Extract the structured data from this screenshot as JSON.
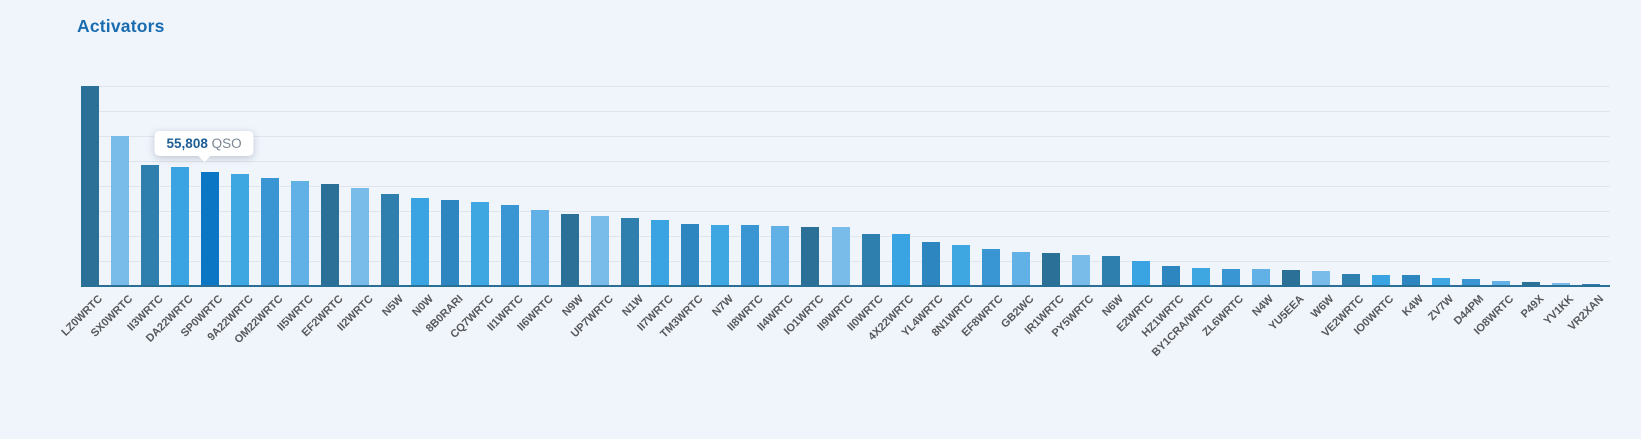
{
  "page": {
    "background": "#f0f5fc"
  },
  "header": {
    "title": "Activators",
    "title_color": "#1a6cb0"
  },
  "tooltip": {
    "value": "55,808",
    "unit": "QSO",
    "target_label": "SP0WRTC",
    "value_color": "#1e5e95",
    "unit_color": "#7b8794"
  },
  "chart_data": {
    "type": "bar",
    "title": "Activators",
    "xlabel": "",
    "ylabel": "",
    "unit": "QSO",
    "ylim": [
      0,
      98000
    ],
    "y_gridline_divisions": 8,
    "grid": "horizontal-only, no y-axis tick labels",
    "legend": "none",
    "bar_color_cycle": [
      "#2b7097",
      "#7abce9",
      "#2f7fae",
      "#3aa3e2",
      "#2e86c1",
      "#3ea6e0",
      "#3996d2",
      "#61b0e6"
    ],
    "highlight_color": "#0b76c4",
    "highlighted_index": 4,
    "highlighted_tooltip": "55,808 QSO",
    "axis_line_color": "#2a6f96",
    "gridline_color": "#dfe5ec",
    "label_color": "#57585a",
    "categories": [
      "LZ0WRTC",
      "SX0WRTC",
      "II3WRTC",
      "DA22WRTC",
      "SP0WRTC",
      "9A22WRTC",
      "OM22WRTC",
      "II5WRTC",
      "EF2WRTC",
      "II2WRTC",
      "N5W",
      "N0W",
      "8B0RARI",
      "CQ7WRTC",
      "II1WRTC",
      "II6WRTC",
      "N9W",
      "UP7WRTC",
      "N1W",
      "II7WRTC",
      "TM3WRTC",
      "N7W",
      "II8WRTC",
      "II4WRTC",
      "IO1WRTC",
      "II9WRTC",
      "II0WRTC",
      "4X22WRTC",
      "YL4WRTC",
      "8N1WRTC",
      "EF8WRTC",
      "GB2WC",
      "IR1WRTC",
      "PY5WRTC",
      "N6W",
      "E2WRTC",
      "HZ1WRTC",
      "BY1CRA/WRTC",
      "ZL6WRTC",
      "N4W",
      "YU5EEA",
      "W6W",
      "VE2WRTC",
      "IO0WRTC",
      "K4W",
      "ZV7W",
      "D44PM",
      "IO8WRTC",
      "P49X",
      "YV1KK",
      "VR2XAN"
    ],
    "values": [
      98000,
      73500,
      59300,
      58300,
      55808,
      54900,
      52900,
      51500,
      50000,
      48000,
      45100,
      43100,
      42100,
      41200,
      39700,
      37200,
      35300,
      34300,
      33300,
      32300,
      30400,
      29900,
      29900,
      29400,
      28900,
      28900,
      25500,
      25500,
      21600,
      20100,
      18100,
      16700,
      16200,
      15200,
      14700,
      12300,
      9800,
      8800,
      8300,
      8300,
      7800,
      7400,
      5900,
      5400,
      5400,
      3900,
      3400,
      2500,
      2000,
      1500,
      1000
    ]
  }
}
